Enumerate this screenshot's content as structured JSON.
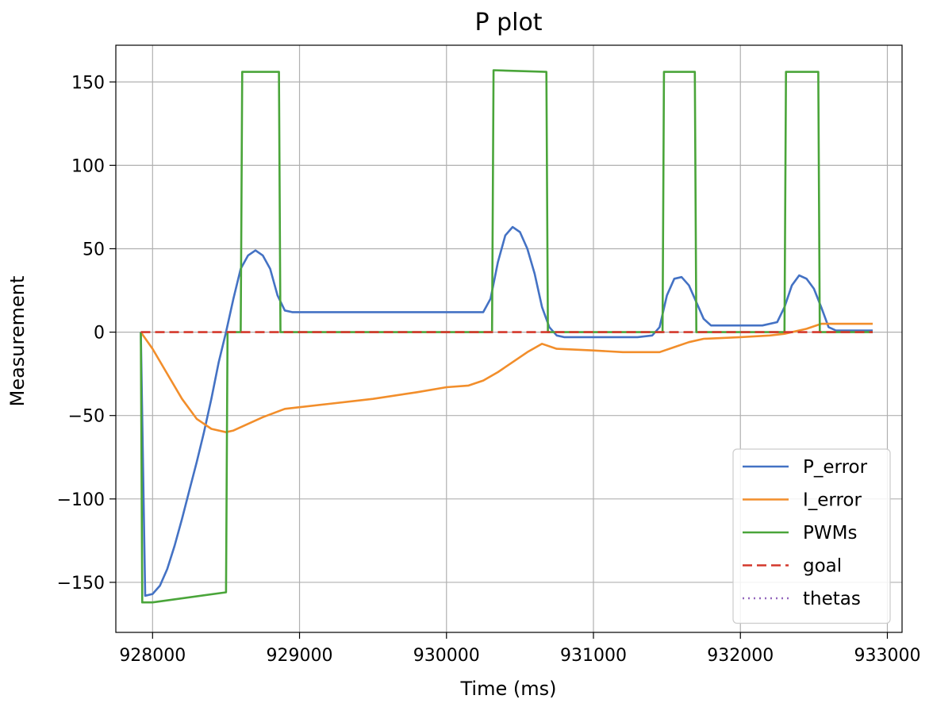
{
  "chart_data": {
    "type": "line",
    "title": "P plot",
    "xlabel": "Time (ms)",
    "ylabel": "Measurement",
    "xlim": [
      927750,
      933100
    ],
    "ylim": [
      -180,
      172
    ],
    "xticks": [
      928000,
      929000,
      930000,
      931000,
      932000,
      933000
    ],
    "xtick_labels": [
      "928000",
      "929000",
      "930000",
      "931000",
      "932000",
      "933000"
    ],
    "yticks": [
      -150,
      -100,
      -50,
      0,
      50,
      100,
      150
    ],
    "ytick_labels": [
      "−150",
      "−100",
      "−50",
      "0",
      "50",
      "100",
      "150"
    ],
    "grid": true,
    "legend_position": "lower right",
    "series": [
      {
        "name": "P_error",
        "color": "#4472c4",
        "style": "solid",
        "points": [
          [
            927920,
            0
          ],
          [
            927950,
            -158
          ],
          [
            928000,
            -157
          ],
          [
            928050,
            -152
          ],
          [
            928100,
            -142
          ],
          [
            928150,
            -128
          ],
          [
            928200,
            -112
          ],
          [
            928250,
            -95
          ],
          [
            928300,
            -78
          ],
          [
            928350,
            -60
          ],
          [
            928400,
            -40
          ],
          [
            928450,
            -18
          ],
          [
            928500,
            0
          ],
          [
            928550,
            20
          ],
          [
            928600,
            38
          ],
          [
            928650,
            46
          ],
          [
            928700,
            49
          ],
          [
            928750,
            46
          ],
          [
            928800,
            38
          ],
          [
            928850,
            22
          ],
          [
            928900,
            13
          ],
          [
            928950,
            12
          ],
          [
            929500,
            12
          ],
          [
            930000,
            12
          ],
          [
            930150,
            12
          ],
          [
            930250,
            12
          ],
          [
            930300,
            20
          ],
          [
            930350,
            42
          ],
          [
            930400,
            58
          ],
          [
            930450,
            63
          ],
          [
            930500,
            60
          ],
          [
            930550,
            50
          ],
          [
            930600,
            35
          ],
          [
            930650,
            15
          ],
          [
            930700,
            3
          ],
          [
            930750,
            -2
          ],
          [
            930800,
            -3
          ],
          [
            931100,
            -3
          ],
          [
            931300,
            -3
          ],
          [
            931400,
            -2
          ],
          [
            931450,
            3
          ],
          [
            931500,
            22
          ],
          [
            931550,
            32
          ],
          [
            931600,
            33
          ],
          [
            931650,
            28
          ],
          [
            931700,
            18
          ],
          [
            931750,
            8
          ],
          [
            931800,
            4
          ],
          [
            932000,
            4
          ],
          [
            932150,
            4
          ],
          [
            932250,
            6
          ],
          [
            932300,
            15
          ],
          [
            932350,
            28
          ],
          [
            932400,
            34
          ],
          [
            932450,
            32
          ],
          [
            932500,
            26
          ],
          [
            932550,
            15
          ],
          [
            932600,
            3
          ],
          [
            932650,
            1
          ],
          [
            932900,
            1
          ]
        ]
      },
      {
        "name": "I_error",
        "color": "#f28e2b",
        "style": "solid",
        "points": [
          [
            927920,
            0
          ],
          [
            928000,
            -10
          ],
          [
            928100,
            -25
          ],
          [
            928200,
            -40
          ],
          [
            928300,
            -52
          ],
          [
            928400,
            -58
          ],
          [
            928500,
            -60
          ],
          [
            928550,
            -59
          ],
          [
            928650,
            -55
          ],
          [
            928750,
            -51
          ],
          [
            928900,
            -46
          ],
          [
            929000,
            -45
          ],
          [
            929200,
            -43
          ],
          [
            929500,
            -40
          ],
          [
            929800,
            -36
          ],
          [
            930000,
            -33
          ],
          [
            930150,
            -32
          ],
          [
            930250,
            -29
          ],
          [
            930350,
            -24
          ],
          [
            930450,
            -18
          ],
          [
            930550,
            -12
          ],
          [
            930650,
            -7
          ],
          [
            930750,
            -10
          ],
          [
            931000,
            -11
          ],
          [
            931200,
            -12
          ],
          [
            931450,
            -12
          ],
          [
            931550,
            -9
          ],
          [
            931650,
            -6
          ],
          [
            931750,
            -4
          ],
          [
            932000,
            -3
          ],
          [
            932200,
            -2
          ],
          [
            932300,
            -1
          ],
          [
            932450,
            2
          ],
          [
            932550,
            5
          ],
          [
            932700,
            5
          ],
          [
            932900,
            5
          ]
        ]
      },
      {
        "name": "PWMs",
        "color": "#4aa53a",
        "style": "solid",
        "points": [
          [
            927920,
            0
          ],
          [
            927930,
            -162
          ],
          [
            928000,
            -162
          ],
          [
            928500,
            -156
          ],
          [
            928510,
            0
          ],
          [
            928600,
            0
          ],
          [
            928610,
            156
          ],
          [
            928860,
            156
          ],
          [
            928870,
            0
          ],
          [
            930310,
            0
          ],
          [
            930320,
            157
          ],
          [
            930680,
            156
          ],
          [
            930690,
            0
          ],
          [
            931470,
            0
          ],
          [
            931480,
            156
          ],
          [
            931690,
            156
          ],
          [
            931700,
            0
          ],
          [
            932300,
            0
          ],
          [
            932310,
            156
          ],
          [
            932530,
            156
          ],
          [
            932540,
            0
          ],
          [
            932900,
            0
          ]
        ]
      },
      {
        "name": "goal",
        "color": "#d4382c",
        "style": "dashed",
        "points": [
          [
            927920,
            0
          ],
          [
            932900,
            0
          ]
        ]
      },
      {
        "name": "thetas",
        "color": "#9467bd",
        "style": "dotted",
        "points": []
      }
    ]
  }
}
